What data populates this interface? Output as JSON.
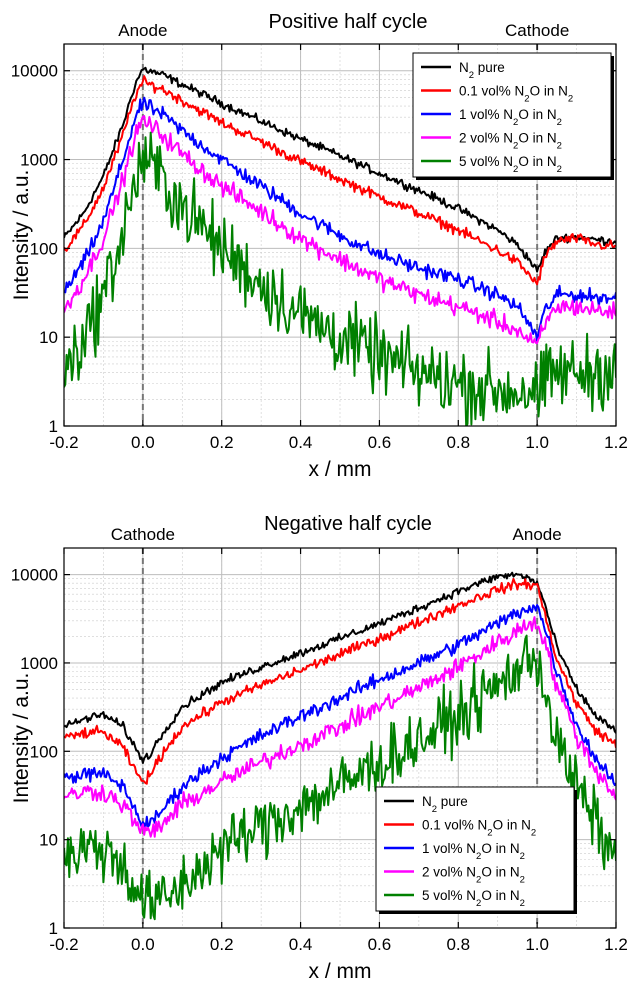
{
  "chart_data": [
    {
      "type": "line",
      "title": "Positive half cycle",
      "xlabel": "x / mm",
      "ylabel": "Intensity / a.u.",
      "xlim": [
        -0.2,
        1.2
      ],
      "ylim": [
        1,
        20000
      ],
      "yscale": "log",
      "x_ticks": [
        "-0.2",
        "0.0",
        "0.2",
        "0.4",
        "0.6",
        "0.8",
        "1.0",
        "1.2"
      ],
      "y_ticks": [
        "1",
        "10",
        "100",
        "1000",
        "10000"
      ],
      "grid": true,
      "legend_position": "top-right",
      "annotations": [
        {
          "text": "Anode",
          "x": 0.0
        },
        {
          "text": "Cathode",
          "x": 1.0
        }
      ],
      "series": [
        {
          "name": "N2 pure",
          "color": "#000000",
          "x": [
            -0.2,
            -0.15,
            -0.1,
            -0.05,
            -0.02,
            0.0,
            0.05,
            0.1,
            0.2,
            0.3,
            0.4,
            0.5,
            0.6,
            0.7,
            0.8,
            0.9,
            0.95,
            0.98,
            1.0,
            1.02,
            1.05,
            1.1,
            1.15,
            1.2
          ],
          "y": [
            130,
            250,
            650,
            2500,
            7000,
            10500,
            9000,
            7000,
            4300,
            2700,
            1700,
            1100,
            700,
            450,
            280,
            160,
            110,
            75,
            55,
            90,
            130,
            135,
            125,
            120
          ],
          "noise": 0.04
        },
        {
          "name": "0.1 vol% N2O in N2",
          "color": "#ff0000",
          "x": [
            -0.2,
            -0.15,
            -0.1,
            -0.05,
            -0.02,
            0.0,
            0.05,
            0.1,
            0.2,
            0.3,
            0.4,
            0.5,
            0.6,
            0.7,
            0.8,
            0.9,
            0.95,
            0.98,
            1.0,
            1.02,
            1.05,
            1.1,
            1.15,
            1.2
          ],
          "y": [
            95,
            180,
            480,
            1900,
            5200,
            7500,
            6200,
            4600,
            2600,
            1600,
            950,
            600,
            380,
            250,
            160,
            95,
            70,
            50,
            40,
            80,
            120,
            130,
            110,
            105
          ],
          "noise": 0.05
        },
        {
          "name": "1 vol% N2O in N2",
          "color": "#0000ff",
          "x": [
            -0.2,
            -0.15,
            -0.1,
            -0.05,
            -0.02,
            0.0,
            0.05,
            0.1,
            0.2,
            0.3,
            0.4,
            0.5,
            0.6,
            0.7,
            0.8,
            0.9,
            0.95,
            0.98,
            1.0,
            1.02,
            1.05,
            1.1,
            1.15,
            1.2
          ],
          "y": [
            32,
            70,
            200,
            1000,
            2900,
            4300,
            3200,
            2100,
            1000,
            500,
            250,
            140,
            85,
            60,
            45,
            30,
            22,
            14,
            10,
            20,
            30,
            30,
            28,
            28
          ],
          "noise": 0.07
        },
        {
          "name": "2 vol% N2O in N2",
          "color": "#ff00ff",
          "x": [
            -0.2,
            -0.15,
            -0.1,
            -0.05,
            -0.02,
            0.0,
            0.05,
            0.1,
            0.2,
            0.3,
            0.4,
            0.5,
            0.6,
            0.7,
            0.8,
            0.9,
            0.95,
            0.98,
            1.0,
            1.02,
            1.05,
            1.1,
            1.15,
            1.2
          ],
          "y": [
            20,
            45,
            130,
            600,
            1800,
            2800,
            1900,
            1150,
            500,
            260,
            130,
            75,
            45,
            30,
            22,
            15,
            12,
            9,
            8,
            14,
            22,
            22,
            20,
            19
          ],
          "noise": 0.09
        },
        {
          "name": "5 vol% N2O in N2",
          "color": "#008000",
          "x": [
            -0.2,
            -0.15,
            -0.1,
            -0.05,
            -0.02,
            0.0,
            0.05,
            0.1,
            0.2,
            0.3,
            0.4,
            0.5,
            0.6,
            0.7,
            0.8,
            0.9,
            0.95,
            0.98,
            1.0,
            1.02,
            1.05,
            1.1,
            1.15,
            1.2
          ],
          "y": [
            4,
            10,
            30,
            150,
            550,
            1050,
            600,
            300,
            100,
            40,
            18,
            10,
            6,
            4,
            3,
            2.5,
            2.5,
            2.5,
            2,
            3,
            4,
            4,
            4,
            5
          ],
          "noise": 0.35
        }
      ]
    },
    {
      "type": "line",
      "title": "Negative half cycle",
      "xlabel": "x / mm",
      "ylabel": "Intensity / a.u.",
      "xlim": [
        -0.2,
        1.2
      ],
      "ylim": [
        1,
        20000
      ],
      "yscale": "log",
      "x_ticks": [
        "-0.2",
        "0.0",
        "0.2",
        "0.4",
        "0.6",
        "0.8",
        "1.0",
        "1.2"
      ],
      "y_ticks": [
        "1",
        "10",
        "100",
        "1000",
        "10000"
      ],
      "grid": true,
      "legend_position": "bottom-right",
      "annotations": [
        {
          "text": "Cathode",
          "x": 0.0
        },
        {
          "text": "Anode",
          "x": 1.0
        }
      ],
      "series": [
        {
          "name": "N2 pure",
          "color": "#000000",
          "x": [
            -0.2,
            -0.15,
            -0.1,
            -0.05,
            -0.02,
            0.0,
            0.02,
            0.05,
            0.1,
            0.2,
            0.3,
            0.4,
            0.5,
            0.6,
            0.7,
            0.8,
            0.9,
            0.95,
            0.98,
            1.0,
            1.02,
            1.05,
            1.1,
            1.15,
            1.2
          ],
          "y": [
            190,
            230,
            260,
            190,
            110,
            80,
            95,
            160,
            320,
            600,
            900,
            1300,
            1900,
            2800,
            4200,
            6500,
            9500,
            10000,
            9000,
            8000,
            4500,
            1500,
            500,
            250,
            170
          ],
          "noise": 0.04
        },
        {
          "name": "0.1 vol% N2O in N2",
          "color": "#ff0000",
          "x": [
            -0.2,
            -0.15,
            -0.1,
            -0.05,
            -0.02,
            0.0,
            0.02,
            0.05,
            0.1,
            0.2,
            0.3,
            0.4,
            0.5,
            0.6,
            0.7,
            0.8,
            0.9,
            0.95,
            0.98,
            1.0,
            1.02,
            1.05,
            1.1,
            1.15,
            1.2
          ],
          "y": [
            140,
            160,
            165,
            110,
            60,
            45,
            55,
            95,
            190,
            360,
            560,
            830,
            1250,
            1900,
            2900,
            4500,
            6800,
            7800,
            7800,
            7500,
            3500,
            1100,
            350,
            170,
            120
          ],
          "noise": 0.05
        },
        {
          "name": "1 vol% N2O in N2",
          "color": "#0000ff",
          "x": [
            -0.2,
            -0.15,
            -0.1,
            -0.05,
            -0.02,
            0.0,
            0.02,
            0.05,
            0.1,
            0.2,
            0.3,
            0.4,
            0.5,
            0.6,
            0.7,
            0.8,
            0.9,
            0.95,
            0.98,
            1.0,
            1.02,
            1.05,
            1.1,
            1.15,
            1.2
          ],
          "y": [
            50,
            55,
            55,
            40,
            22,
            15,
            15,
            22,
            40,
            85,
            150,
            250,
            400,
            650,
            1000,
            1600,
            2800,
            3700,
            4300,
            4300,
            2500,
            800,
            200,
            80,
            45
          ],
          "noise": 0.07
        },
        {
          "name": "2 vol% N2O in N2",
          "color": "#ff00ff",
          "x": [
            -0.2,
            -0.15,
            -0.1,
            -0.05,
            -0.02,
            0.0,
            0.02,
            0.05,
            0.1,
            0.2,
            0.3,
            0.4,
            0.5,
            0.6,
            0.7,
            0.8,
            0.9,
            0.95,
            0.98,
            1.0,
            1.02,
            1.05,
            1.1,
            1.15,
            1.2
          ],
          "y": [
            30,
            35,
            35,
            25,
            16,
            12,
            12,
            15,
            25,
            45,
            75,
            120,
            190,
            320,
            520,
            900,
            1700,
            2300,
            2800,
            2900,
            1700,
            550,
            150,
            60,
            32
          ],
          "noise": 0.09
        },
        {
          "name": "5 vol% N2O in N2",
          "color": "#008000",
          "x": [
            -0.2,
            -0.15,
            -0.1,
            -0.05,
            -0.02,
            0.0,
            0.02,
            0.05,
            0.1,
            0.2,
            0.3,
            0.4,
            0.5,
            0.6,
            0.7,
            0.8,
            0.9,
            0.95,
            0.98,
            1.0,
            1.02,
            1.05,
            1.1,
            1.15,
            1.2
          ],
          "y": [
            6,
            8,
            8,
            5,
            3,
            2,
            2,
            2,
            3,
            8,
            14,
            24,
            40,
            75,
            130,
            250,
            550,
            850,
            1100,
            1200,
            500,
            120,
            40,
            15,
            6
          ],
          "noise": 0.3
        }
      ]
    }
  ]
}
